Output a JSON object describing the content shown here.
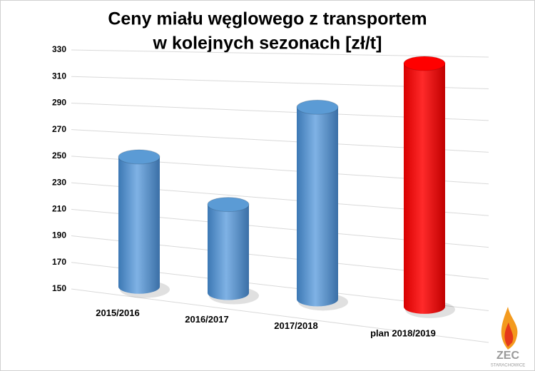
{
  "chart_data": {
    "type": "bar3d",
    "title": [
      "Ceny miału węglowego z transportem",
      "w kolejnych sezonach [zł/t]"
    ],
    "categories": [
      "2015/2016",
      "2016/2017",
      "2017/2018",
      "plan 2018/2019"
    ],
    "values": [
      246,
      214,
      286,
      318
    ],
    "colors": [
      "#5b9bd5",
      "#5b9bd5",
      "#5b9bd5",
      "#ff0000"
    ],
    "ylim": [
      150,
      330
    ],
    "yticks": [
      150,
      170,
      190,
      210,
      230,
      250,
      270,
      290,
      310,
      330
    ],
    "grid": true
  },
  "logo": {
    "name": "ZEC",
    "sub": "STARACHOWICE"
  }
}
